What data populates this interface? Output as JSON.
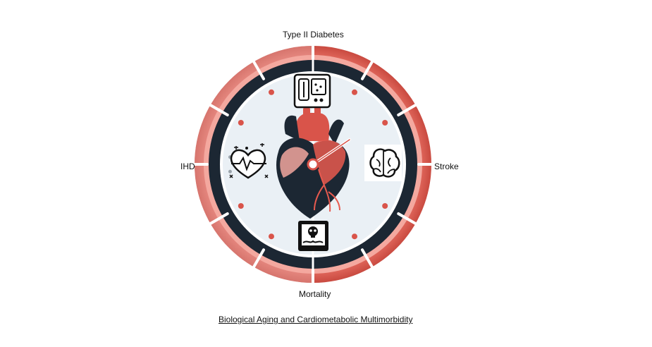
{
  "diagram": {
    "labels": {
      "top": "Type II Diabetes",
      "left": "IHD",
      "right": "Stroke",
      "bottom": "Mortality"
    },
    "caption": "Biological Aging and Cardiometabolic Multimorbidity",
    "icons": {
      "top": "blood-pressure-monitor-icon",
      "left": "heart-condition-icon",
      "right": "brain-icon",
      "bottom": "skull-icon",
      "center": "anatomical-heart-icon"
    },
    "colors": {
      "accent_red": "#e85a4f",
      "dark_navy": "#1c2733",
      "clock_face": "#eaf0f5"
    }
  }
}
